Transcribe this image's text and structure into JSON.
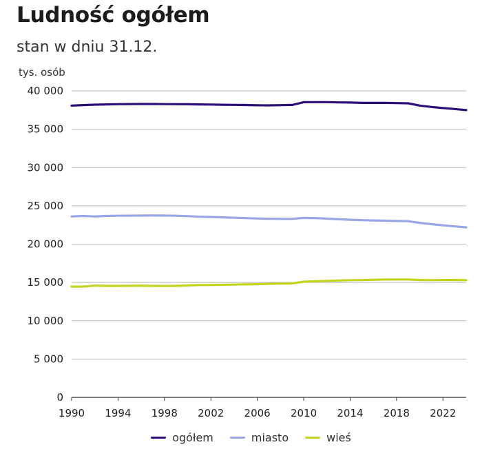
{
  "chart_data": {
    "type": "line",
    "title": "Ludność ogółem",
    "subtitle": "stan w dniu 31.12.",
    "ylabel": "tys. osób",
    "xlim": [
      1990,
      2024
    ],
    "ylim": [
      0,
      40000
    ],
    "grid": "horizontal",
    "legend_position": "bottom",
    "x_ticks": [
      {
        "value": 1990,
        "label": "1990"
      },
      {
        "value": 1994,
        "label": "1994"
      },
      {
        "value": 1998,
        "label": "1998"
      },
      {
        "value": 2002,
        "label": "2002"
      },
      {
        "value": 2006,
        "label": "2006"
      },
      {
        "value": 2010,
        "label": "2010"
      },
      {
        "value": 2014,
        "label": "2014"
      },
      {
        "value": 2018,
        "label": "2018"
      },
      {
        "value": 2022,
        "label": "2022"
      }
    ],
    "y_ticks": [
      {
        "value": 0,
        "label": "0"
      },
      {
        "value": 5000,
        "label": "5 000"
      },
      {
        "value": 10000,
        "label": "10 000"
      },
      {
        "value": 15000,
        "label": "15 000"
      },
      {
        "value": 20000,
        "label": "20 000"
      },
      {
        "value": 25000,
        "label": "25 000"
      },
      {
        "value": 30000,
        "label": "30 000"
      },
      {
        "value": 35000,
        "label": "35 000"
      },
      {
        "value": 40000,
        "label": "40 000"
      }
    ],
    "x": [
      1990,
      1991,
      1992,
      1993,
      1994,
      1995,
      1996,
      1997,
      1998,
      1999,
      2000,
      2001,
      2002,
      2003,
      2004,
      2005,
      2006,
      2007,
      2008,
      2009,
      2010,
      2011,
      2012,
      2013,
      2014,
      2015,
      2016,
      2017,
      2018,
      2019,
      2020,
      2021,
      2022,
      2023,
      2024
    ],
    "series": [
      {
        "name": "ogółem",
        "color": "#2d0e7a",
        "values": [
          38073,
          38144,
          38203,
          38239,
          38265,
          38284,
          38294,
          38290,
          38277,
          38263,
          38254,
          38242,
          38219,
          38191,
          38174,
          38157,
          38125,
          38116,
          38136,
          38167,
          38530,
          38538,
          38533,
          38496,
          38479,
          38437,
          38433,
          38434,
          38411,
          38383,
          38089,
          37907,
          37766,
          37637,
          37490
        ]
      },
      {
        "name": "miasto",
        "color": "#9aa5e6",
        "values": [
          23614,
          23688,
          23610,
          23682,
          23710,
          23719,
          23726,
          23736,
          23731,
          23710,
          23660,
          23581,
          23545,
          23497,
          23447,
          23400,
          23346,
          23304,
          23288,
          23299,
          23429,
          23396,
          23328,
          23244,
          23184,
          23129,
          23092,
          23057,
          23022,
          22995,
          22776,
          22604,
          22450,
          22320,
          22190
        ]
      },
      {
        "name": "wieś",
        "color": "#c2d41e",
        "values": [
          14459,
          14456,
          14593,
          14557,
          14555,
          14565,
          14568,
          14554,
          14546,
          14553,
          14594,
          14661,
          14674,
          14694,
          14727,
          14757,
          14779,
          14812,
          14848,
          14868,
          15101,
          15142,
          15205,
          15252,
          15295,
          15308,
          15341,
          15377,
          15389,
          15388,
          15313,
          15303,
          15316,
          15317,
          15300
        ]
      }
    ]
  }
}
